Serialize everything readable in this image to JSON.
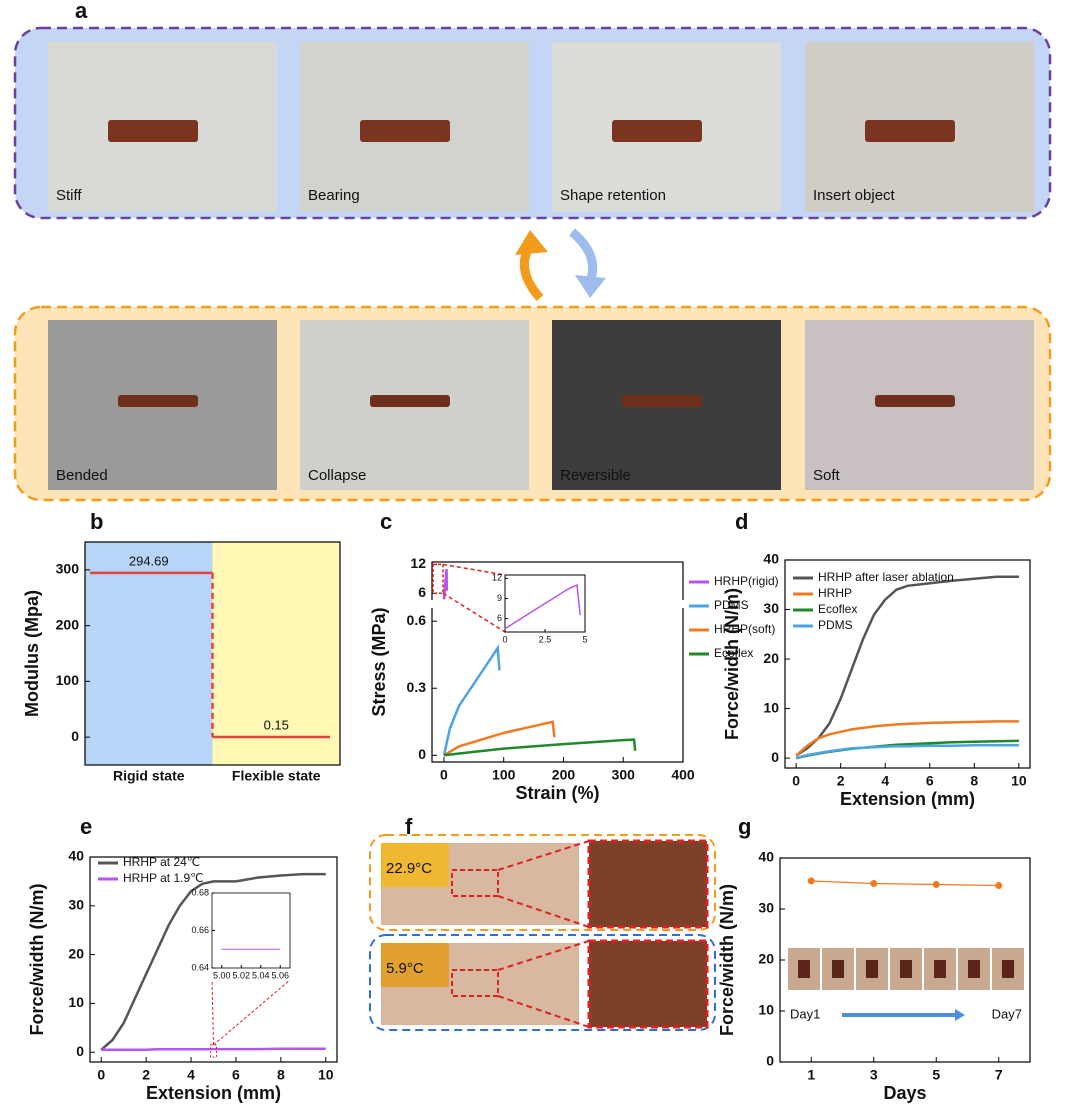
{
  "panel_labels": [
    "a",
    "b",
    "c",
    "d",
    "e",
    "f",
    "g"
  ],
  "photos_top": [
    "Stiff",
    "Bearing",
    "Shape retention",
    "Insert object"
  ],
  "photos_bottom": [
    "Bended",
    "Collapse",
    "Reversible",
    "Soft"
  ],
  "panel_f": {
    "temps": [
      "22.9°C",
      "5.9°C"
    ]
  },
  "g_image_labels": [
    "Day1",
    "Day7"
  ],
  "chart_data": [
    {
      "type": "step",
      "ylabel": "Modulus (Mpa)",
      "categories": [
        "Rigid state",
        "Flexible state"
      ],
      "values": [
        294.69,
        0.15
      ],
      "color": "#e8413f",
      "band_colors": [
        "#b7d5f7",
        "#fff9b5"
      ],
      "ylim": [
        -50,
        350
      ],
      "yticks": [
        0,
        100,
        200,
        300
      ]
    },
    {
      "type": "broken_line",
      "xlabel": "Strain (%)",
      "ylabel": "Stress (MPa)",
      "xlim": [
        -20,
        400
      ],
      "xticks": [
        0,
        100,
        200,
        300,
        400
      ],
      "ylim": [
        -0.03,
        0.65
      ],
      "yticks": [
        0,
        0.3,
        0.6
      ],
      "ylim_upper": [
        5,
        12.5
      ],
      "yticks_upper": [
        6,
        12
      ],
      "series": [
        {
          "name": "HRHP(rigid)",
          "color": "#b455f0",
          "x": [
            0,
            1,
            2,
            3,
            4,
            4.5,
            4.7
          ],
          "values": [
            4.5,
            6,
            7.5,
            9,
            10.5,
            11,
            6.5
          ]
        },
        {
          "name": "PDMS",
          "color": "#4da3e8",
          "x": [
            0,
            10,
            25,
            50,
            70,
            90,
            93
          ],
          "values": [
            0,
            0.12,
            0.22,
            0.32,
            0.4,
            0.48,
            0.38
          ]
        },
        {
          "name": "HRHP(soft)",
          "color": "#f07a22",
          "x": [
            0,
            25,
            50,
            100,
            150,
            182,
            185
          ],
          "values": [
            0,
            0.04,
            0.06,
            0.1,
            0.13,
            0.15,
            0.08
          ]
        },
        {
          "name": "Ecoflex",
          "color": "#1e8a2a",
          "x": [
            0,
            50,
            100,
            200,
            300,
            318,
            320
          ],
          "values": [
            0,
            0.015,
            0.03,
            0.05,
            0.068,
            0.07,
            0.02
          ]
        }
      ],
      "inset": {
        "xlim": [
          0,
          5
        ],
        "ylim": [
          4,
          12.5
        ],
        "xticks": [
          0,
          2.5,
          5
        ],
        "yticks": [
          6,
          9,
          12
        ]
      }
    },
    {
      "type": "line",
      "xlabel": "Extension (mm)",
      "ylabel": "Force/width (N/m)",
      "xlim": [
        -0.5,
        10.5
      ],
      "xticks": [
        0,
        2,
        4,
        6,
        8,
        10
      ],
      "ylim": [
        -2,
        40
      ],
      "yticks": [
        0,
        10,
        20,
        30,
        40
      ],
      "x": [
        0,
        0.5,
        1,
        1.5,
        2,
        2.5,
        3,
        3.5,
        4,
        4.5,
        5,
        6,
        7,
        8,
        9,
        10
      ],
      "series": [
        {
          "name": "HRHP after laser ablation",
          "color": "#555555",
          "values": [
            0.5,
            2,
            4,
            7,
            12,
            18,
            24,
            29,
            32,
            34,
            34.8,
            35.3,
            35.8,
            36.2,
            36.6,
            36.6
          ]
        },
        {
          "name": "HRHP",
          "color": "#f07a22",
          "values": [
            0.5,
            2.5,
            4,
            4.8,
            5.3,
            5.8,
            6.1,
            6.4,
            6.6,
            6.8,
            6.9,
            7.1,
            7.2,
            7.3,
            7.4,
            7.4
          ]
        },
        {
          "name": "Ecoflex",
          "color": "#1e8a2a",
          "values": [
            0,
            0.5,
            0.9,
            1.3,
            1.6,
            1.9,
            2.1,
            2.3,
            2.5,
            2.7,
            2.8,
            3,
            3.2,
            3.3,
            3.4,
            3.5
          ]
        },
        {
          "name": "PDMS",
          "color": "#4da3e8",
          "values": [
            0,
            0.6,
            1,
            1.4,
            1.7,
            2,
            2.1,
            2.2,
            2.3,
            2.4,
            2.4,
            2.5,
            2.5,
            2.6,
            2.6,
            2.6
          ]
        }
      ]
    },
    {
      "type": "line",
      "xlabel": "Extension (mm)",
      "ylabel": "Force/width (N/m)",
      "xlim": [
        -0.5,
        10.5
      ],
      "xticks": [
        0,
        2,
        4,
        6,
        8,
        10
      ],
      "ylim": [
        -2,
        40
      ],
      "yticks": [
        0,
        10,
        20,
        30,
        40
      ],
      "x": [
        0,
        0.5,
        1,
        1.5,
        2,
        2.5,
        3,
        3.5,
        4,
        4.5,
        5,
        6,
        7,
        8,
        9,
        10
      ],
      "series": [
        {
          "name": "HRHP at 24℃",
          "color": "#555555",
          "values": [
            0.5,
            2.5,
            6,
            11,
            16,
            21,
            26,
            30,
            33,
            34.5,
            35,
            35,
            35.8,
            36.2,
            36.5,
            36.5
          ]
        },
        {
          "name": "HRHP at 1.9℃",
          "color": "#b455f0",
          "values": [
            0.5,
            0.5,
            0.5,
            0.5,
            0.5,
            0.6,
            0.6,
            0.6,
            0.6,
            0.6,
            0.65,
            0.65,
            0.65,
            0.7,
            0.7,
            0.7
          ]
        }
      ],
      "inset": {
        "xlim": [
          4.99,
          5.07
        ],
        "ylim": [
          0.64,
          0.68
        ],
        "xticks": [
          {
            "value": 5,
            "label": "5.00"
          },
          5.02,
          5.04,
          5.06
        ],
        "yticks": [
          0.64,
          0.66,
          0.68
        ],
        "x": [
          5.0,
          5.06
        ],
        "values": [
          0.65,
          0.65
        ]
      }
    },
    {
      "type": "line",
      "xlabel": "Days",
      "ylabel": "Force/width (N/m)",
      "markers": true,
      "xlim": [
        0,
        8
      ],
      "xticks": [
        1,
        3,
        5,
        7
      ],
      "ylim": [
        0,
        40
      ],
      "yticks": [
        0,
        10,
        20,
        30,
        40
      ],
      "x": [
        1,
        3,
        5,
        7
      ],
      "series": [
        {
          "color": "#f07a22",
          "values": [
            35.5,
            35,
            34.8,
            34.6
          ]
        }
      ]
    }
  ]
}
